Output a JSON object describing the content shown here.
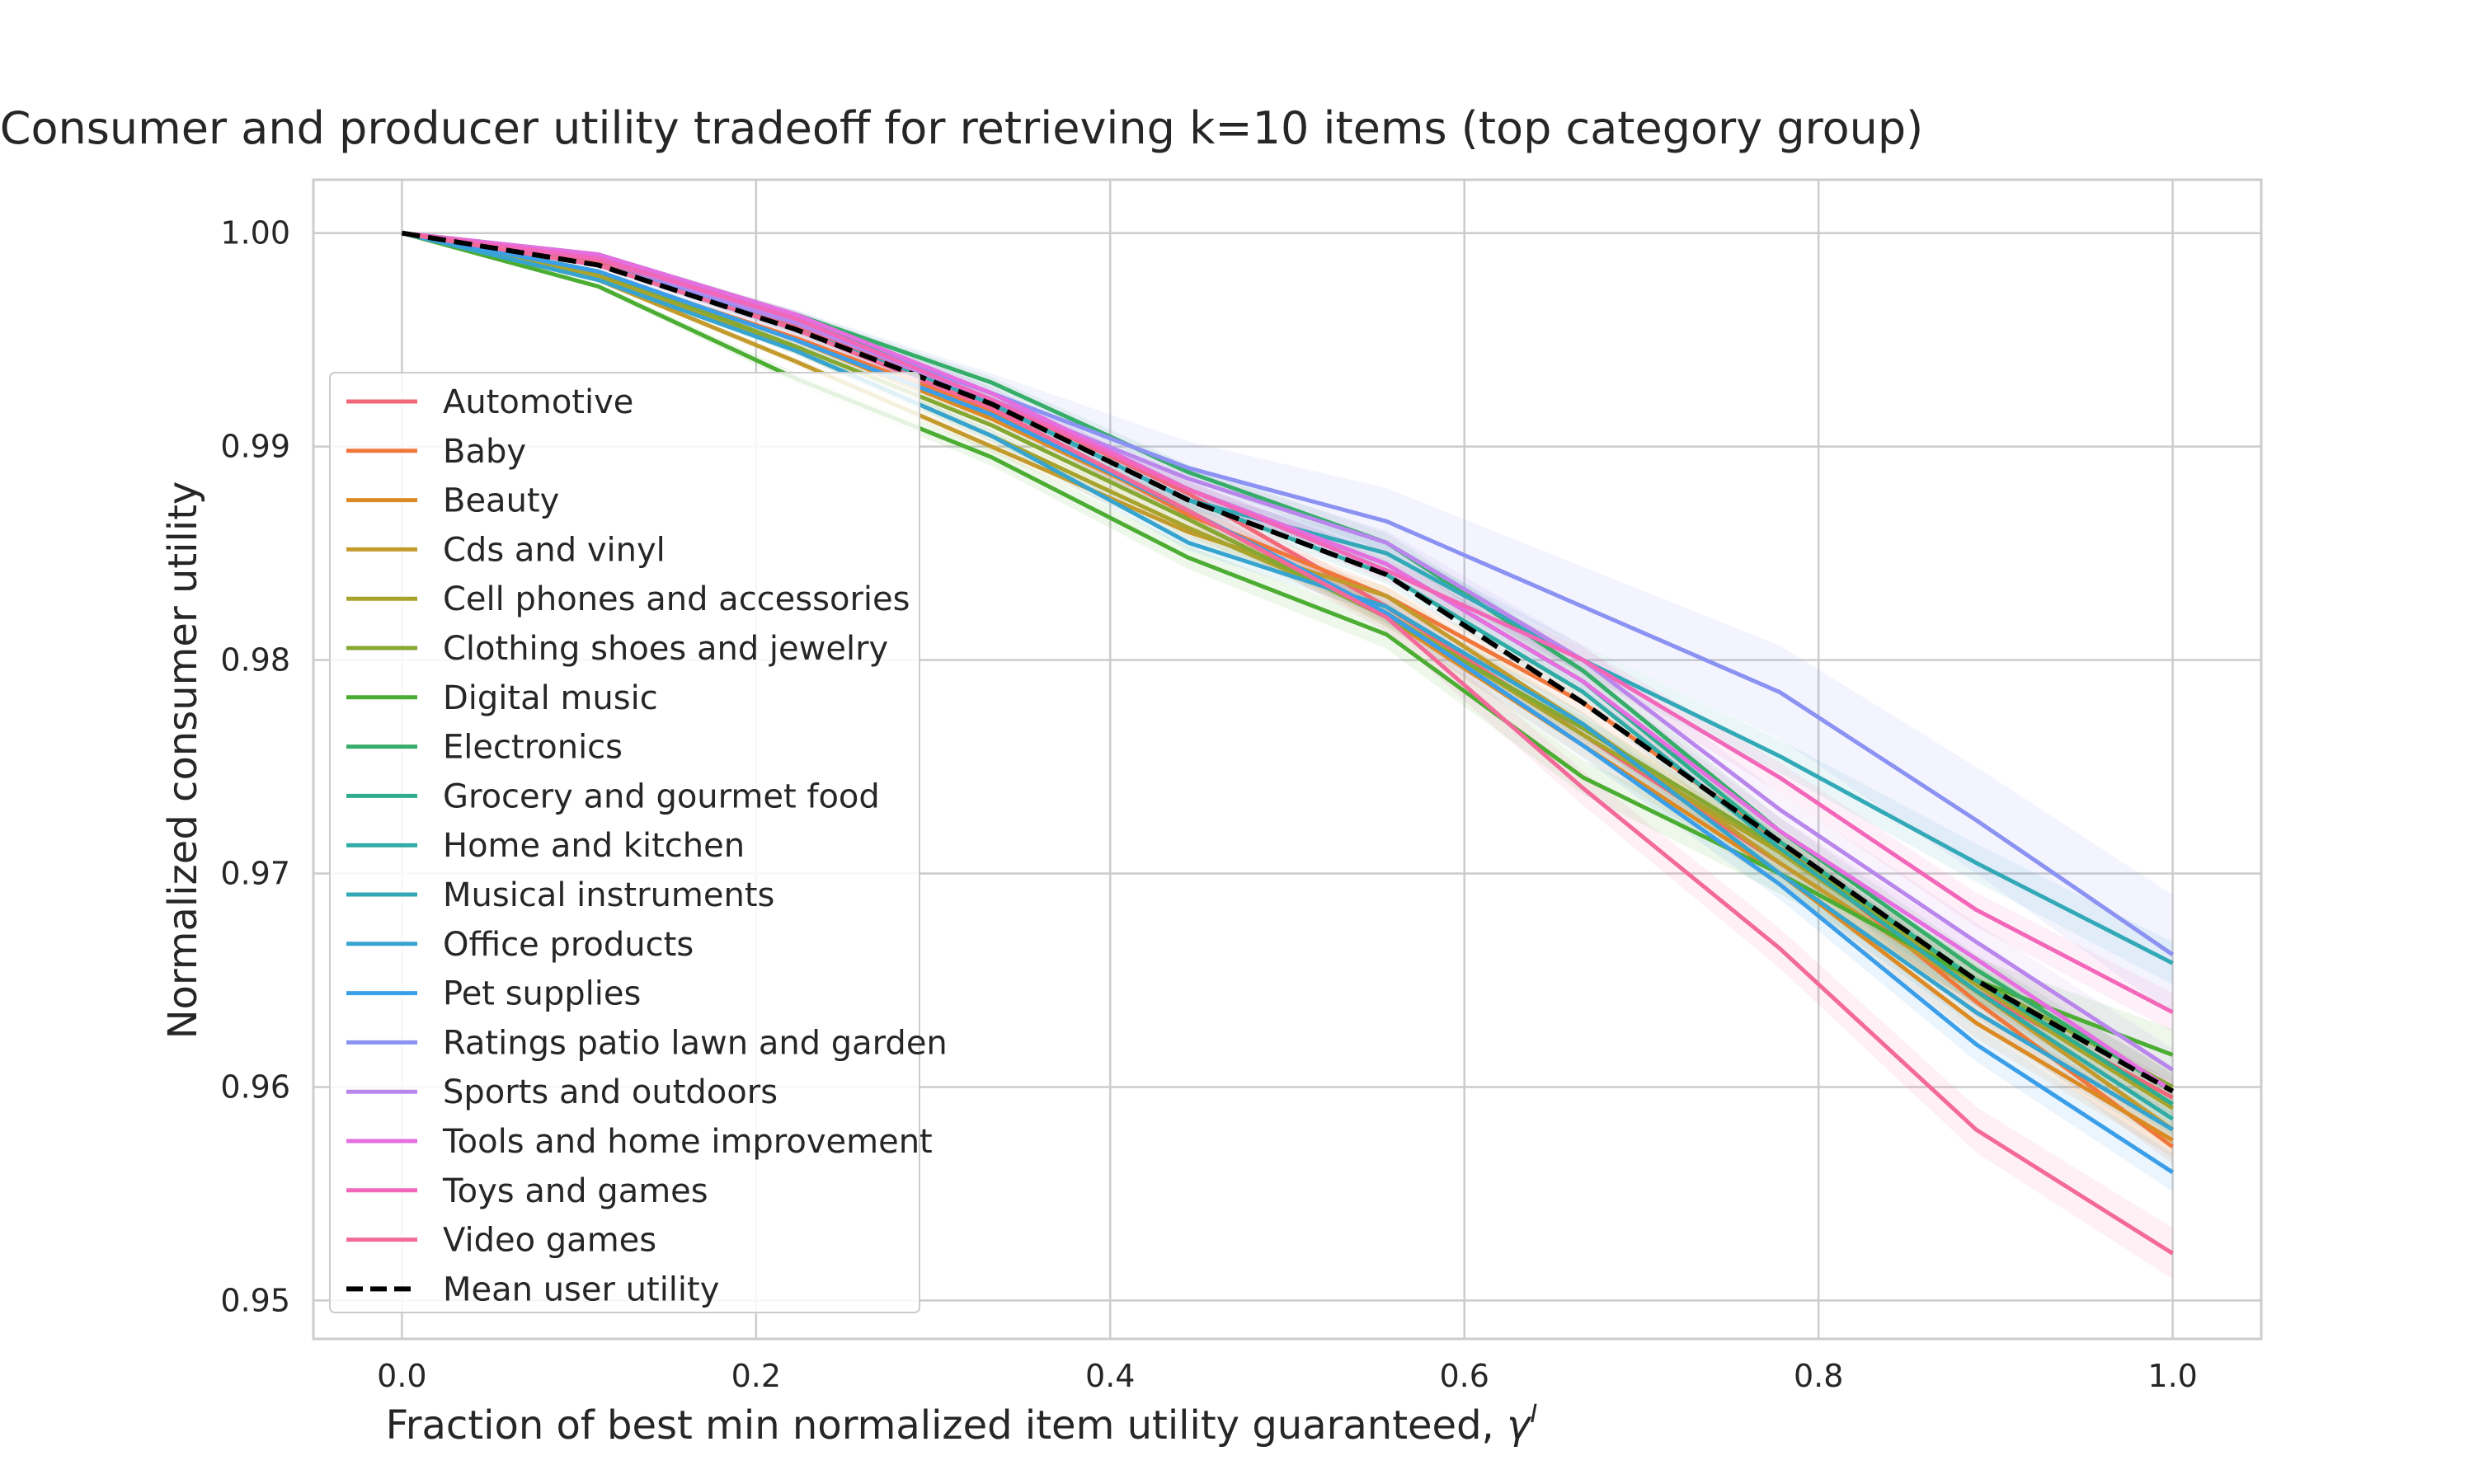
{
  "chart_data": {
    "type": "line",
    "title": "Consumer and producer utility tradeoff for retrieving k=10 items (top category group)",
    "xlabel": "Fraction of best min normalized item utility guaranteed, ",
    "xlabel_symbol": "γ",
    "xlabel_superscript": "I",
    "ylabel": "Normalized consumer utility",
    "xlim": [
      -0.05,
      1.05
    ],
    "ylim": [
      0.9482,
      1.0025
    ],
    "x_ticks": [
      0.0,
      0.2,
      0.4,
      0.6,
      0.8,
      1.0
    ],
    "x_tick_labels": [
      "0.0",
      "0.2",
      "0.4",
      "0.6",
      "0.8",
      "1.0"
    ],
    "y_ticks": [
      0.95,
      0.96,
      0.97,
      0.98,
      0.99,
      1.0
    ],
    "y_tick_labels": [
      "0.95",
      "0.96",
      "0.97",
      "0.98",
      "0.99",
      "1.00"
    ],
    "grid": true,
    "legend_position": "left",
    "x": [
      0.0,
      0.111,
      0.222,
      0.333,
      0.444,
      0.556,
      0.667,
      0.778,
      0.889,
      1.0
    ],
    "series": [
      {
        "name": "Automotive",
        "color": "#f0687a",
        "values": [
          1.0,
          0.9986,
          0.9957,
          0.9922,
          0.9878,
          0.9825,
          0.9765,
          0.9705,
          0.9645,
          0.9595
        ],
        "band": 0.0008
      },
      {
        "name": "Baby",
        "color": "#f0773c",
        "values": [
          1.0,
          0.9981,
          0.9951,
          0.9917,
          0.9868,
          0.983,
          0.978,
          0.9715,
          0.964,
          0.9572
        ],
        "band": 0.0008
      },
      {
        "name": "Beauty",
        "color": "#dc8a24",
        "values": [
          1.0,
          0.9982,
          0.995,
          0.9913,
          0.987,
          0.982,
          0.976,
          0.97,
          0.963,
          0.9575
        ],
        "band": 0.0008
      },
      {
        "name": "Cds and vinyl",
        "color": "#c39a2c",
        "values": [
          1.0,
          0.9978,
          0.994,
          0.99,
          0.986,
          0.983,
          0.977,
          0.9705,
          0.9645,
          0.958
        ],
        "band": 0.0008
      },
      {
        "name": "Cell phones and accessories",
        "color": "#a8a32c",
        "values": [
          1.0,
          0.998,
          0.9945,
          0.9905,
          0.9862,
          0.9822,
          0.9765,
          0.971,
          0.9648,
          0.959
        ],
        "band": 0.0008
      },
      {
        "name": "Clothing shoes and jewelry",
        "color": "#85a833",
        "values": [
          1.0,
          0.9982,
          0.9947,
          0.991,
          0.9866,
          0.982,
          0.9768,
          0.9712,
          0.965,
          0.96
        ],
        "band": 0.0008
      },
      {
        "name": "Digital music",
        "color": "#4cad33",
        "values": [
          1.0,
          0.9975,
          0.9932,
          0.9895,
          0.9848,
          0.9812,
          0.9745,
          0.97,
          0.965,
          0.9615
        ],
        "band": 0.0012
      },
      {
        "name": "Electronics",
        "color": "#36ae6a",
        "values": [
          1.0,
          0.999,
          0.9962,
          0.993,
          0.9888,
          0.9855,
          0.9795,
          0.972,
          0.9655,
          0.9598
        ],
        "band": 0.0008
      },
      {
        "name": "Grocery and gourmet food",
        "color": "#2fae8f",
        "values": [
          1.0,
          0.9988,
          0.996,
          0.9925,
          0.988,
          0.9845,
          0.979,
          0.9715,
          0.965,
          0.9592
        ],
        "band": 0.0008
      },
      {
        "name": "Home and kitchen",
        "color": "#31aba6",
        "values": [
          1.0,
          0.9985,
          0.9955,
          0.992,
          0.9875,
          0.984,
          0.9785,
          0.9712,
          0.9645,
          0.9585
        ],
        "band": 0.0008
      },
      {
        "name": "Musical instruments",
        "color": "#33a9b8",
        "values": [
          1.0,
          0.9985,
          0.9955,
          0.992,
          0.9875,
          0.985,
          0.98,
          0.9755,
          0.9705,
          0.9658
        ],
        "band": 0.001
      },
      {
        "name": "Office products",
        "color": "#36a4ce",
        "values": [
          1.0,
          0.9978,
          0.9945,
          0.9905,
          0.9855,
          0.9825,
          0.977,
          0.97,
          0.9635,
          0.958
        ],
        "band": 0.0008
      },
      {
        "name": "Pet supplies",
        "color": "#3b9ee8",
        "values": [
          1.0,
          0.9982,
          0.995,
          0.9915,
          0.987,
          0.9822,
          0.976,
          0.9695,
          0.962,
          0.956
        ],
        "band": 0.0009
      },
      {
        "name": "Ratings patio lawn and garden",
        "color": "#8b92f2",
        "values": [
          1.0,
          0.9985,
          0.9958,
          0.9925,
          0.989,
          0.9865,
          0.9825,
          0.9785,
          0.9725,
          0.9662
        ],
        "band": 0.0028
      },
      {
        "name": "Sports and outdoors",
        "color": "#b987ec",
        "values": [
          1.0,
          0.9988,
          0.9958,
          0.9922,
          0.9885,
          0.9855,
          0.98,
          0.973,
          0.9668,
          0.9608
        ],
        "band": 0.001
      },
      {
        "name": "Tools and home improvement",
        "color": "#e56ee0",
        "values": [
          1.0,
          0.999,
          0.9962,
          0.9925,
          0.988,
          0.9845,
          0.979,
          0.972,
          0.966,
          0.9598
        ],
        "band": 0.0008
      },
      {
        "name": "Toys and games",
        "color": "#f267b9",
        "values": [
          1.0,
          0.9988,
          0.996,
          0.9922,
          0.988,
          0.9842,
          0.98,
          0.9745,
          0.9683,
          0.9635
        ],
        "band": 0.0009
      },
      {
        "name": "Video games",
        "color": "#f36a9a",
        "values": [
          1.0,
          0.9985,
          0.9955,
          0.9918,
          0.987,
          0.982,
          0.974,
          0.9665,
          0.958,
          0.9522
        ],
        "band": 0.0012
      },
      {
        "name": "Mean user utility",
        "color": "#000000",
        "dashed": true,
        "values": [
          1.0,
          0.9985,
          0.9955,
          0.992,
          0.9875,
          0.984,
          0.978,
          0.9715,
          0.965,
          0.9598
        ]
      }
    ]
  }
}
